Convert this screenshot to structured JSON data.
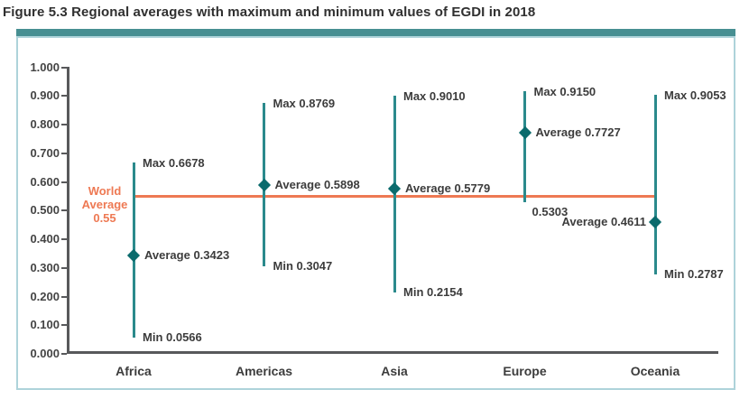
{
  "title": "Figure 5.3 Regional averages with maximum and minimum values of EGDI in 2018",
  "colors": {
    "top_bar": "#478F92",
    "frame_border": "#AED3DA",
    "axis": "#58595B",
    "range_line": "#2B8A8C",
    "marker": "#0B6B6D",
    "world_average": "#EE7953",
    "label_text": "#3C3C3C"
  },
  "chart_data": {
    "type": "range",
    "title": "Figure 5.3 Regional averages with maximum and minimum values of EGDI in 2018",
    "xlabel": "",
    "ylabel": "",
    "ylim": [
      0,
      1
    ],
    "grid": false,
    "legend": "none",
    "yticks": [
      "0.000",
      "0.100",
      "0.200",
      "0.300",
      "0.400",
      "0.500",
      "0.600",
      "0.700",
      "0.800",
      "0.900",
      "1.000"
    ],
    "categories": [
      "Africa",
      "Americas",
      "Asia",
      "Europe",
      "Oceania"
    ],
    "series": [
      {
        "name": "Max",
        "values": [
          0.6678,
          0.8769,
          0.901,
          0.915,
          0.9053
        ]
      },
      {
        "name": "Average",
        "values": [
          0.3423,
          0.5898,
          0.5779,
          0.7727,
          0.4611
        ]
      },
      {
        "name": "Min",
        "values": [
          0.0566,
          0.3047,
          0.2154,
          0.5303,
          0.2787
        ]
      }
    ],
    "regions": [
      {
        "category": "Africa",
        "max": 0.6678,
        "avg": 0.3423,
        "min": 0.0566,
        "max_label": "Max 0.6678",
        "avg_label": "Average 0.3423",
        "min_label": "Min 0.0566",
        "avg_label_side": "right",
        "min_label_pos": "right"
      },
      {
        "category": "Americas",
        "max": 0.8769,
        "avg": 0.5898,
        "min": 0.3047,
        "max_label": "Max 0.8769",
        "avg_label": "Average 0.5898",
        "min_label": "Min 0.3047",
        "avg_label_side": "right",
        "min_label_pos": "right"
      },
      {
        "category": "Asia",
        "max": 0.901,
        "avg": 0.5779,
        "min": 0.2154,
        "max_label": "Max 0.9010",
        "avg_label": "Average 0.5779",
        "min_label": "Min 0.2154",
        "avg_label_side": "right",
        "min_label_pos": "right"
      },
      {
        "category": "Europe",
        "max": 0.915,
        "avg": 0.7727,
        "min": 0.5303,
        "max_label": "Max 0.9150",
        "avg_label": "Average 0.7727",
        "min_label": "0.5303",
        "avg_label_side": "right",
        "min_label_pos": "below"
      },
      {
        "category": "Oceania",
        "max": 0.9053,
        "avg": 0.4611,
        "min": 0.2787,
        "max_label": "Max 0.9053",
        "avg_label": "Average 0.4611",
        "min_label": "Min 0.2787",
        "avg_label_side": "left",
        "min_label_pos": "right"
      }
    ],
    "world_average": {
      "value": 0.55,
      "label_lines": [
        "World",
        "Average",
        "0.55"
      ]
    }
  }
}
